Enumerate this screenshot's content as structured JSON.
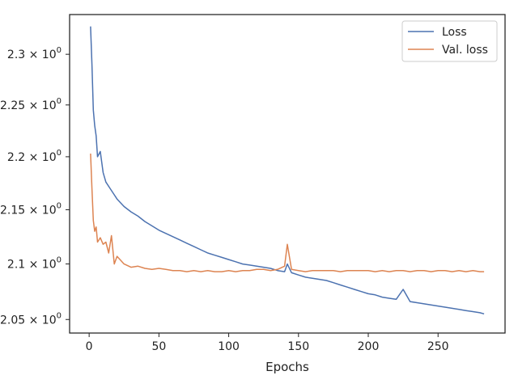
{
  "chart_data": {
    "type": "line",
    "title": "",
    "xlabel": "Epochs",
    "ylabel": "",
    "yscale": "log",
    "xlim": [
      -14,
      298
    ],
    "ylim": [
      2.038,
      2.34
    ],
    "grid": false,
    "legend_position": "top-right",
    "x_ticks": [
      0,
      50,
      100,
      150,
      200,
      250
    ],
    "y_ticks": [
      {
        "value": 2.05,
        "mantissa": "2.05",
        "sep": " × 10",
        "exp": "0"
      },
      {
        "value": 2.1,
        "mantissa": "2.1",
        "sep": " × 10",
        "exp": "0"
      },
      {
        "value": 2.15,
        "mantissa": "2.15",
        "sep": " × 10",
        "exp": "0"
      },
      {
        "value": 2.2,
        "mantissa": "2.2",
        "sep": " × 10",
        "exp": "0"
      },
      {
        "value": 2.25,
        "mantissa": "2.25",
        "sep": " × 10",
        "exp": "0"
      },
      {
        "value": 2.3,
        "mantissa": "2.3",
        "sep": " × 10",
        "exp": "0"
      }
    ],
    "series": [
      {
        "name": "Loss",
        "color": "#4c72b0",
        "points": [
          [
            1,
            2.328
          ],
          [
            2,
            2.29
          ],
          [
            3,
            2.245
          ],
          [
            4,
            2.23
          ],
          [
            5,
            2.22
          ],
          [
            6,
            2.2
          ],
          [
            8,
            2.205
          ],
          [
            10,
            2.185
          ],
          [
            12,
            2.176
          ],
          [
            15,
            2.17
          ],
          [
            18,
            2.164
          ],
          [
            20,
            2.16
          ],
          [
            25,
            2.153
          ],
          [
            30,
            2.148
          ],
          [
            35,
            2.144
          ],
          [
            40,
            2.139
          ],
          [
            45,
            2.135
          ],
          [
            50,
            2.131
          ],
          [
            55,
            2.128
          ],
          [
            60,
            2.125
          ],
          [
            65,
            2.122
          ],
          [
            70,
            2.119
          ],
          [
            75,
            2.116
          ],
          [
            80,
            2.113
          ],
          [
            85,
            2.11
          ],
          [
            90,
            2.108
          ],
          [
            95,
            2.106
          ],
          [
            100,
            2.104
          ],
          [
            105,
            2.102
          ],
          [
            110,
            2.1
          ],
          [
            115,
            2.099
          ],
          [
            120,
            2.098
          ],
          [
            125,
            2.097
          ],
          [
            130,
            2.096
          ],
          [
            135,
            2.094
          ],
          [
            140,
            2.093
          ],
          [
            142,
            2.1
          ],
          [
            145,
            2.092
          ],
          [
            150,
            2.09
          ],
          [
            155,
            2.088
          ],
          [
            160,
            2.087
          ],
          [
            165,
            2.086
          ],
          [
            170,
            2.085
          ],
          [
            175,
            2.083
          ],
          [
            180,
            2.081
          ],
          [
            185,
            2.079
          ],
          [
            190,
            2.077
          ],
          [
            195,
            2.075
          ],
          [
            200,
            2.073
          ],
          [
            205,
            2.072
          ],
          [
            210,
            2.07
          ],
          [
            215,
            2.069
          ],
          [
            220,
            2.068
          ],
          [
            225,
            2.077
          ],
          [
            230,
            2.066
          ],
          [
            235,
            2.065
          ],
          [
            240,
            2.064
          ],
          [
            245,
            2.063
          ],
          [
            250,
            2.062
          ],
          [
            255,
            2.061
          ],
          [
            260,
            2.06
          ],
          [
            265,
            2.059
          ],
          [
            270,
            2.058
          ],
          [
            275,
            2.057
          ],
          [
            280,
            2.056
          ],
          [
            283,
            2.055
          ]
        ]
      },
      {
        "name": "Val. loss",
        "color": "#dd8452",
        "points": [
          [
            1,
            2.203
          ],
          [
            2,
            2.17
          ],
          [
            3,
            2.14
          ],
          [
            4,
            2.13
          ],
          [
            5,
            2.134
          ],
          [
            6,
            2.12
          ],
          [
            8,
            2.124
          ],
          [
            10,
            2.118
          ],
          [
            12,
            2.12
          ],
          [
            14,
            2.11
          ],
          [
            16,
            2.126
          ],
          [
            18,
            2.1
          ],
          [
            20,
            2.107
          ],
          [
            25,
            2.1
          ],
          [
            30,
            2.097
          ],
          [
            35,
            2.098
          ],
          [
            40,
            2.096
          ],
          [
            45,
            2.095
          ],
          [
            50,
            2.096
          ],
          [
            55,
            2.095
          ],
          [
            60,
            2.094
          ],
          [
            65,
            2.094
          ],
          [
            70,
            2.093
          ],
          [
            75,
            2.094
          ],
          [
            80,
            2.093
          ],
          [
            85,
            2.094
          ],
          [
            90,
            2.093
          ],
          [
            95,
            2.093
          ],
          [
            100,
            2.094
          ],
          [
            105,
            2.093
          ],
          [
            110,
            2.094
          ],
          [
            115,
            2.094
          ],
          [
            120,
            2.095
          ],
          [
            125,
            2.095
          ],
          [
            130,
            2.094
          ],
          [
            135,
            2.095
          ],
          [
            140,
            2.098
          ],
          [
            142,
            2.118
          ],
          [
            145,
            2.095
          ],
          [
            150,
            2.094
          ],
          [
            155,
            2.093
          ],
          [
            160,
            2.094
          ],
          [
            165,
            2.094
          ],
          [
            170,
            2.094
          ],
          [
            175,
            2.094
          ],
          [
            180,
            2.093
          ],
          [
            185,
            2.094
          ],
          [
            190,
            2.094
          ],
          [
            195,
            2.094
          ],
          [
            200,
            2.094
          ],
          [
            205,
            2.093
          ],
          [
            210,
            2.094
          ],
          [
            215,
            2.093
          ],
          [
            220,
            2.094
          ],
          [
            225,
            2.094
          ],
          [
            230,
            2.093
          ],
          [
            235,
            2.094
          ],
          [
            240,
            2.094
          ],
          [
            245,
            2.093
          ],
          [
            250,
            2.094
          ],
          [
            255,
            2.094
          ],
          [
            260,
            2.093
          ],
          [
            265,
            2.094
          ],
          [
            270,
            2.093
          ],
          [
            275,
            2.094
          ],
          [
            280,
            2.093
          ],
          [
            283,
            2.093
          ]
        ]
      }
    ]
  }
}
